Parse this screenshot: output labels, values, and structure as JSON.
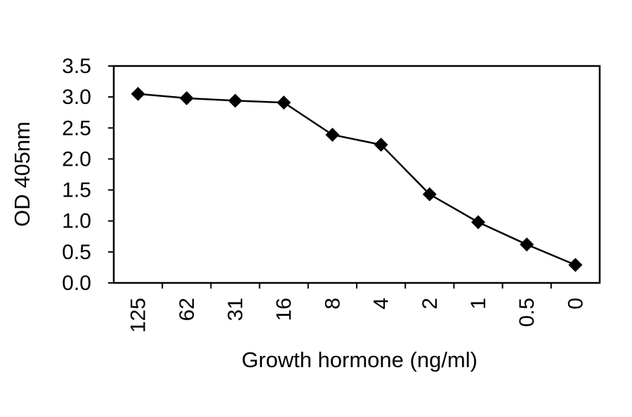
{
  "chart_data": {
    "type": "line",
    "xlabel": "Growth hormone (ng/ml)",
    "ylabel": "OD 405nm",
    "categories": [
      "125",
      "62",
      "31",
      "16",
      "8",
      "4",
      "2",
      "1",
      "0.5",
      "0"
    ],
    "series": [
      {
        "values": [
          3.05,
          2.98,
          2.94,
          2.91,
          2.39,
          2.23,
          1.43,
          0.98,
          0.62,
          0.29
        ],
        "marker": "diamond",
        "color": "#000000"
      }
    ],
    "ylim": [
      0,
      3.5
    ],
    "yticks": [
      "0.0",
      "0.5",
      "1.0",
      "1.5",
      "2.0",
      "2.5",
      "3.0",
      "3.5"
    ],
    "grid": false,
    "legend": "none"
  }
}
